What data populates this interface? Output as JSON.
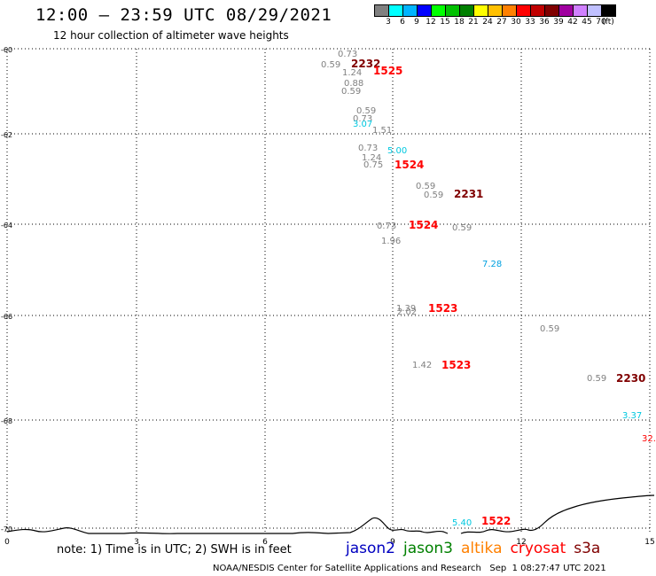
{
  "header": {
    "title": "12:00 – 23:59 UTC 08/29/2021",
    "subtitle": "12 hour collection of altimeter wave heights"
  },
  "scale": {
    "colors": [
      "#808080",
      "#00ffff",
      "#00b4ff",
      "#0000ff",
      "#00ff00",
      "#00c000",
      "#008000",
      "#ffff00",
      "#ffc000",
      "#ff8000",
      "#ff0000",
      "#c00000",
      "#800000",
      "#a000a0",
      "#d080ff",
      "#c0c0ff",
      "#000000"
    ],
    "labels": [
      "3",
      "6",
      "9",
      "12",
      "15",
      "18",
      "21",
      "24",
      "27",
      "30",
      "33",
      "36",
      "39",
      "42",
      "45",
      "70",
      "(ft)"
    ]
  },
  "axes": {
    "y_labels": [
      "-60",
      "-62",
      "-64",
      "-66",
      "-68",
      "-70"
    ],
    "x_labels": [
      "0",
      "3",
      "6",
      "9",
      "12",
      "15"
    ]
  },
  "points": [
    {
      "text": "0.73",
      "color": "#808080"
    },
    {
      "text": "0.59",
      "color": "#808080"
    },
    {
      "text": "2232",
      "color": "#800000"
    },
    {
      "text": "1.24",
      "color": "#808080"
    },
    {
      "text": "1525",
      "color": "#ff0000"
    },
    {
      "text": "0.88",
      "color": "#808080"
    },
    {
      "text": "0.59",
      "color": "#808080"
    },
    {
      "text": "0.59",
      "color": "#808080"
    },
    {
      "text": "0.73",
      "color": "#808080"
    },
    {
      "text": "3.07",
      "color": "#00c8e0"
    },
    {
      "text": "1.51",
      "color": "#808080"
    },
    {
      "text": "0.73",
      "color": "#808080"
    },
    {
      "text": "5.00",
      "color": "#00c8e0"
    },
    {
      "text": "1.24",
      "color": "#808080"
    },
    {
      "text": "0.75",
      "color": "#808080"
    },
    {
      "text": "1524",
      "color": "#ff0000"
    },
    {
      "text": "0.59",
      "color": "#808080"
    },
    {
      "text": "0.59",
      "color": "#808080"
    },
    {
      "text": "2231",
      "color": "#800000"
    },
    {
      "text": "0.73",
      "color": "#808080"
    },
    {
      "text": "1524",
      "color": "#ff0000"
    },
    {
      "text": "0.59",
      "color": "#808080"
    },
    {
      "text": "1.96",
      "color": "#808080"
    },
    {
      "text": "7.28",
      "color": "#00a0e0"
    },
    {
      "text": "1.39",
      "color": "#808080"
    },
    {
      "text": "2.02",
      "color": "#808080"
    },
    {
      "text": "1523",
      "color": "#ff0000"
    },
    {
      "text": "0.59",
      "color": "#808080"
    },
    {
      "text": "1.42",
      "color": "#808080"
    },
    {
      "text": "1523",
      "color": "#ff0000"
    },
    {
      "text": "0.59",
      "color": "#808080"
    },
    {
      "text": "2230",
      "color": "#800000"
    },
    {
      "text": "3.37",
      "color": "#00c8e0"
    },
    {
      "text": "32.",
      "color": "#ff0000"
    },
    {
      "text": "5.40",
      "color": "#00c8e0"
    },
    {
      "text": "1522",
      "color": "#ff0000"
    }
  ],
  "footer": {
    "note": "note:  1) Time is in UTC;  2) SWH is in feet",
    "missions": [
      {
        "name": "jason2",
        "color": "#0000c0"
      },
      {
        "name": "jason3",
        "color": "#008000"
      },
      {
        "name": "altika",
        "color": "#ff8000"
      },
      {
        "name": "cryosat",
        "color": "#ff0000"
      },
      {
        "name": "s3a",
        "color": "#800000"
      }
    ],
    "credit": "NOAA/NESDIS Center for Satellite Applications and Research   Sep  1 08:27:47 UTC 2021"
  }
}
